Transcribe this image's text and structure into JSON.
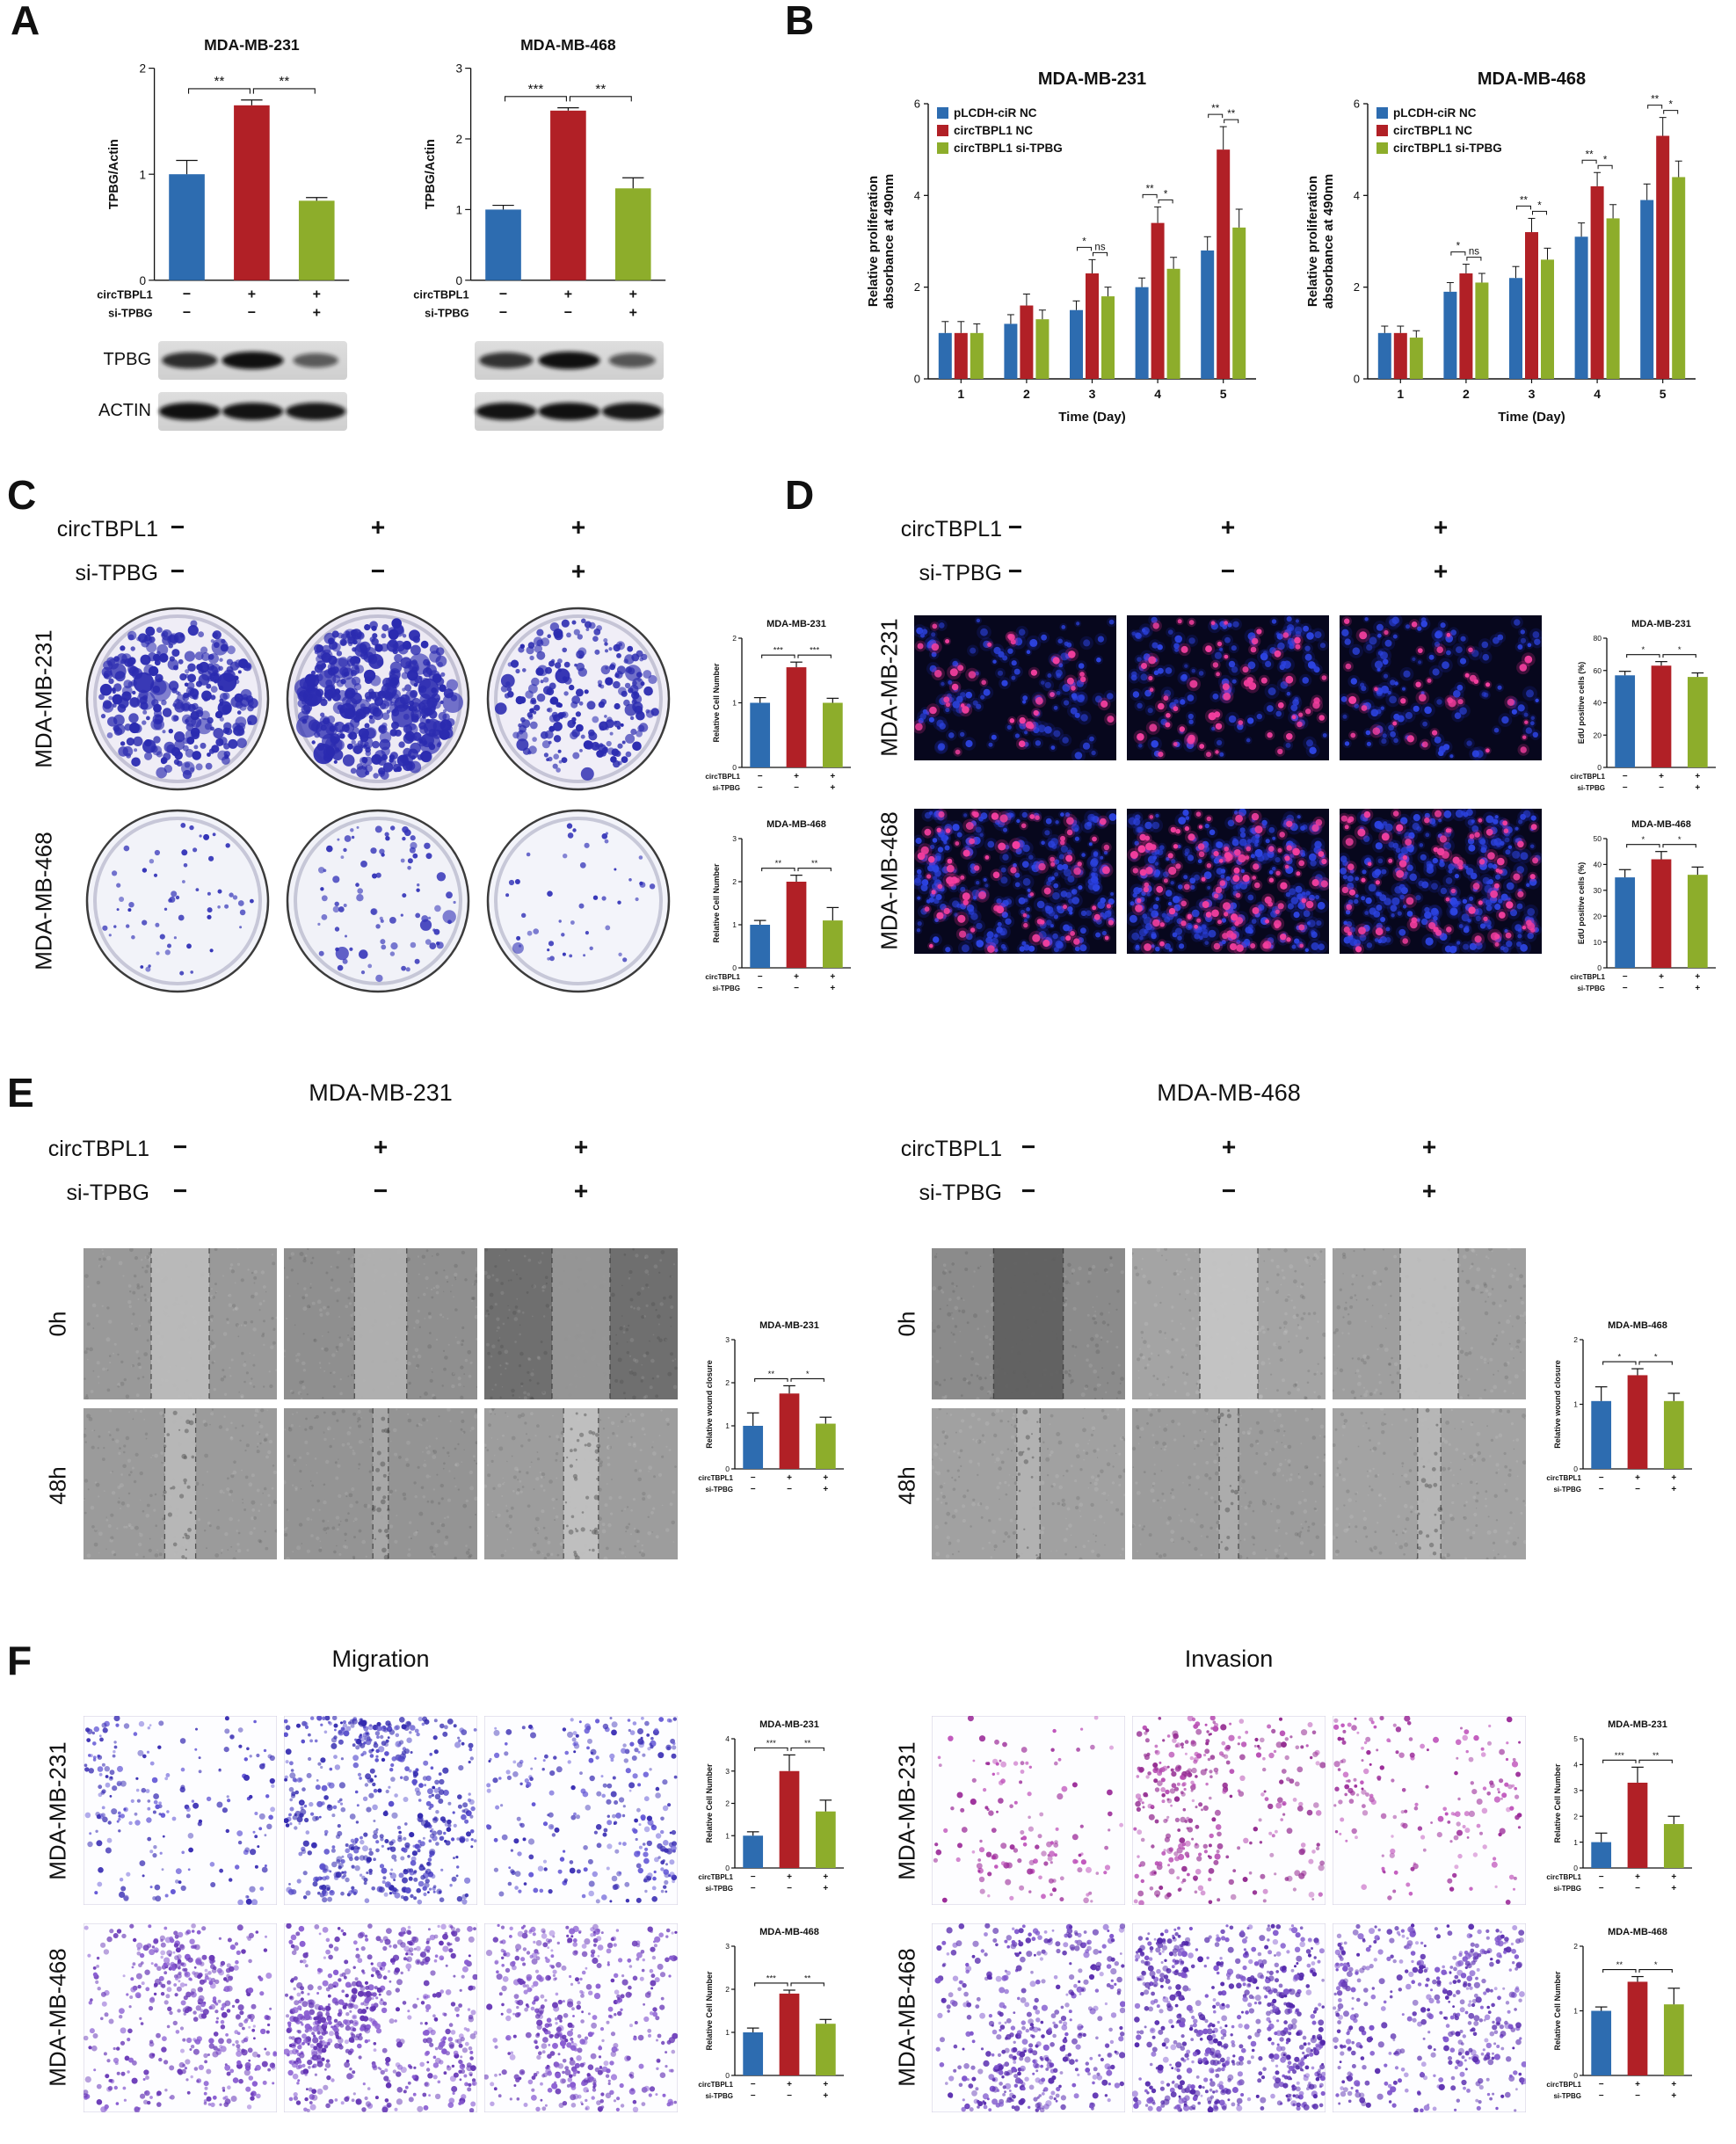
{
  "colors": {
    "blue": "#2d6cb0",
    "red": "#b12026",
    "green": "#8dad2b"
  },
  "conditions": {
    "row1_label": "circTBPL1",
    "row2_label": "si-TPBG",
    "row1": [
      "−",
      "+",
      "+"
    ],
    "row2": [
      "−",
      "−",
      "+"
    ]
  },
  "panelA": {
    "label": "A",
    "blot_rows": [
      "TPBG",
      "ACTIN"
    ],
    "charts": [
      {
        "type": "bar",
        "title": "MDA-MB-231",
        "ylabel": "TPBG/Actin",
        "ylim": [
          0,
          2
        ],
        "yticks": [
          0,
          1,
          2
        ],
        "values": [
          1.0,
          1.65,
          0.75
        ],
        "errors": [
          0.13,
          0.05,
          0.03
        ],
        "sig": [
          {
            "a": 0,
            "b": 1,
            "label": "**"
          },
          {
            "a": 1,
            "b": 2,
            "label": "**"
          }
        ]
      },
      {
        "type": "bar",
        "title": "MDA-MB-468",
        "ylabel": "TPBG/Actin",
        "ylim": [
          0,
          3
        ],
        "yticks": [
          0,
          1,
          2,
          3
        ],
        "values": [
          1.0,
          2.4,
          1.3
        ],
        "errors": [
          0.06,
          0.04,
          0.15
        ],
        "sig": [
          {
            "a": 0,
            "b": 1,
            "label": "***"
          },
          {
            "a": 1,
            "b": 2,
            "label": "**"
          }
        ]
      }
    ],
    "blots": {
      "mda231": {
        "TPBG": [
          0.8,
          1.0,
          0.45
        ],
        "ACTIN": [
          1.0,
          0.98,
          0.95
        ]
      },
      "mda468": {
        "TPBG": [
          0.75,
          1.0,
          0.5
        ],
        "ACTIN": [
          0.98,
          1.0,
          0.96
        ]
      }
    }
  },
  "panelB": {
    "label": "B",
    "charts": [
      {
        "type": "grouped-bar",
        "title": "MDA-MB-231",
        "ylabel_lines": [
          "Relative proliferation",
          "absorbance at 490nm"
        ],
        "xlabel": "Time (Day)",
        "ylim": [
          0,
          6
        ],
        "yticks": [
          0,
          2,
          4,
          6
        ],
        "categories": [
          "1",
          "2",
          "3",
          "4",
          "5"
        ],
        "series": [
          {
            "name": "pLCDH-ciR NC",
            "values": [
              1.0,
              1.2,
              1.5,
              2.0,
              2.8
            ],
            "errors": [
              0.25,
              0.2,
              0.2,
              0.2,
              0.3
            ]
          },
          {
            "name": "circTBPL1 NC",
            "values": [
              1.0,
              1.6,
              2.3,
              3.4,
              5.0
            ],
            "errors": [
              0.25,
              0.25,
              0.3,
              0.35,
              0.5
            ]
          },
          {
            "name": "circTBPL1 si-TPBG",
            "values": [
              1.0,
              1.3,
              1.8,
              2.4,
              3.3
            ],
            "errors": [
              0.2,
              0.2,
              0.2,
              0.25,
              0.4
            ]
          }
        ],
        "sig": [
          {
            "day": 2,
            "labels": [
              "*",
              "ns"
            ]
          },
          {
            "day": 3,
            "labels": [
              "**",
              "*"
            ]
          },
          {
            "day": 4,
            "labels": [
              "**",
              "**"
            ]
          }
        ]
      },
      {
        "type": "grouped-bar",
        "title": "MDA-MB-468",
        "ylabel_lines": [
          "Relative proliferation",
          "absorbance at 490nm"
        ],
        "xlabel": "Time (Day)",
        "ylim": [
          0,
          6
        ],
        "yticks": [
          0,
          2,
          4,
          6
        ],
        "categories": [
          "1",
          "2",
          "3",
          "4",
          "5"
        ],
        "series": [
          {
            "name": "pLCDH-ciR NC",
            "values": [
              1.0,
              1.9,
              2.2,
              3.1,
              3.9
            ],
            "errors": [
              0.15,
              0.2,
              0.25,
              0.3,
              0.35
            ]
          },
          {
            "name": "circTBPL1 NC",
            "values": [
              1.0,
              2.3,
              3.2,
              4.2,
              5.3
            ],
            "errors": [
              0.15,
              0.2,
              0.3,
              0.3,
              0.4
            ]
          },
          {
            "name": "circTBPL1 si-TPBG",
            "values": [
              0.9,
              2.1,
              2.6,
              3.5,
              4.4
            ],
            "errors": [
              0.15,
              0.2,
              0.25,
              0.3,
              0.35
            ]
          }
        ],
        "sig": [
          {
            "day": 1,
            "labels": [
              "*",
              "ns"
            ]
          },
          {
            "day": 2,
            "labels": [
              "**",
              "*"
            ]
          },
          {
            "day": 3,
            "labels": [
              "**",
              "*"
            ]
          },
          {
            "day": 4,
            "labels": [
              "**",
              "*"
            ]
          }
        ]
      }
    ]
  },
  "panelC": {
    "label": "C",
    "row_labels": [
      "MDA-MB-231",
      "MDA-MB-468"
    ],
    "images": [
      {
        "type": "dish",
        "seed": 11,
        "count": 300,
        "rmin": 2,
        "rmax": 6.5,
        "big": 0.08,
        "bg": "#efedf6",
        "dot": "#2b2bb0"
      },
      {
        "type": "dish",
        "seed": 12,
        "count": 430,
        "rmin": 2,
        "rmax": 7.0,
        "big": 0.1,
        "bg": "#edeaf4",
        "dot": "#2b2bb0"
      },
      {
        "type": "dish",
        "seed": 13,
        "count": 240,
        "rmin": 1.8,
        "rmax": 5.5,
        "big": 0.06,
        "bg": "#f0eef7",
        "dot": "#2b2bb0"
      },
      {
        "type": "dish",
        "seed": 14,
        "count": 60,
        "rmin": 1.5,
        "rmax": 3.6,
        "big": 0.05,
        "bg": "#f2f3f9",
        "dot": "#3434b8"
      },
      {
        "type": "dish",
        "seed": 15,
        "count": 90,
        "rmin": 1.5,
        "rmax": 4.2,
        "big": 0.05,
        "bg": "#f1f2f8",
        "dot": "#3434b8"
      },
      {
        "type": "dish",
        "seed": 16,
        "count": 46,
        "rmin": 1.4,
        "rmax": 3.4,
        "big": 0.04,
        "bg": "#f3f4fa",
        "dot": "#3434b8"
      }
    ],
    "charts": [
      {
        "type": "bar",
        "title": "MDA-MB-231",
        "ylabel": "Relative Cell Number",
        "ylim": [
          0,
          2
        ],
        "yticks": [
          0,
          1,
          2
        ],
        "values": [
          1.0,
          1.55,
          1.0
        ],
        "errors": [
          0.08,
          0.08,
          0.07
        ],
        "sig": [
          {
            "a": 0,
            "b": 1,
            "label": "***"
          },
          {
            "a": 1,
            "b": 2,
            "label": "***"
          }
        ]
      },
      {
        "type": "bar",
        "title": "MDA-MB-468",
        "ylabel": "Relative Cell Number",
        "ylim": [
          0,
          3
        ],
        "yticks": [
          0,
          1,
          2,
          3
        ],
        "values": [
          1.0,
          2.0,
          1.1
        ],
        "errors": [
          0.1,
          0.15,
          0.3
        ],
        "sig": [
          {
            "a": 0,
            "b": 1,
            "label": "**"
          },
          {
            "a": 1,
            "b": 2,
            "label": "**"
          }
        ]
      }
    ]
  },
  "panelD": {
    "label": "D",
    "row_labels": [
      "MDA-MB-231",
      "MDA-MB-468"
    ],
    "images": [
      {
        "type": "fluor",
        "seed": 21,
        "blue": 120,
        "pink": 38
      },
      {
        "type": "fluor",
        "seed": 22,
        "blue": 125,
        "pink": 62
      },
      {
        "type": "fluor",
        "seed": 23,
        "blue": 115,
        "pink": 36
      },
      {
        "type": "fluor",
        "seed": 24,
        "blue": 260,
        "pink": 78
      },
      {
        "type": "fluor",
        "seed": 25,
        "blue": 265,
        "pink": 118
      },
      {
        "type": "fluor",
        "seed": 26,
        "blue": 250,
        "pink": 82
      }
    ],
    "charts": [
      {
        "type": "bar",
        "title": "MDA-MB-231",
        "ylabel": "EdU positive cells (%)",
        "ylim": [
          0,
          80
        ],
        "yticks": [
          0,
          20,
          40,
          60,
          80
        ],
        "values": [
          57,
          63,
          56
        ],
        "errors": [
          2.5,
          2.5,
          2.5
        ],
        "sig": [
          {
            "a": 0,
            "b": 1,
            "label": "*"
          },
          {
            "a": 1,
            "b": 2,
            "label": "*"
          }
        ]
      },
      {
        "type": "bar",
        "title": "MDA-MB-468",
        "ylabel": "EdU positive cells (%)",
        "ylim": [
          0,
          50
        ],
        "yticks": [
          0,
          10,
          20,
          30,
          40,
          50
        ],
        "values": [
          35,
          42,
          36
        ],
        "errors": [
          3,
          3,
          3
        ],
        "sig": [
          {
            "a": 0,
            "b": 1,
            "label": "*"
          },
          {
            "a": 1,
            "b": 2,
            "label": "*"
          }
        ]
      }
    ]
  },
  "panelE": {
    "label": "E",
    "row_labels": [
      "0h",
      "48h"
    ],
    "blocks": [
      {
        "title": "MDA-MB-231",
        "images": [
          {
            "type": "wound",
            "seed": 31,
            "bg": "#999999",
            "gap": 0.3,
            "gapFill": "#bcbcbc"
          },
          {
            "type": "wound",
            "seed": 32,
            "bg": "#8f8f8f",
            "gap": 0.27,
            "gapFill": "#b2b2b2"
          },
          {
            "type": "wound",
            "seed": 33,
            "bg": "#6f6f6f",
            "gap": 0.3,
            "gapFill": "#989898"
          },
          {
            "type": "wound",
            "seed": 34,
            "bg": "#9b9b9b",
            "gap": 0.16,
            "gapFill": "#bababa",
            "cells": 28
          },
          {
            "type": "wound",
            "seed": 35,
            "bg": "#949494",
            "gap": 0.08,
            "gapFill": "#a8a8a8",
            "cells": 22
          },
          {
            "type": "wound",
            "seed": 36,
            "bg": "#9d9d9d",
            "gap": 0.18,
            "gapFill": "#c2c2c2",
            "cells": 40
          }
        ],
        "chart": {
          "type": "bar",
          "title": "MDA-MB-231",
          "ylabel": "Relative wound closure",
          "ylim": [
            0,
            3
          ],
          "yticks": [
            0,
            1,
            2,
            3
          ],
          "values": [
            1.0,
            1.75,
            1.05
          ],
          "errors": [
            0.3,
            0.18,
            0.15
          ],
          "sig": [
            {
              "a": 0,
              "b": 1,
              "label": "**"
            },
            {
              "a": 1,
              "b": 2,
              "label": "*"
            }
          ]
        }
      },
      {
        "title": "MDA-MB-468",
        "images": [
          {
            "type": "wound",
            "seed": 41,
            "bg": "#8b8b8b",
            "gap": 0.36,
            "gapFill": "#5e5e5e"
          },
          {
            "type": "wound",
            "seed": 42,
            "bg": "#a4a4a4",
            "gap": 0.3,
            "gapFill": "#c6c6c6"
          },
          {
            "type": "wound",
            "seed": 43,
            "bg": "#9f9f9f",
            "gap": 0.3,
            "gapFill": "#bfbfbf"
          },
          {
            "type": "wound",
            "seed": 44,
            "bg": "#a1a1a1",
            "gap": 0.12,
            "gapFill": "#b3b3b3",
            "cells": 18
          },
          {
            "type": "wound",
            "seed": 45,
            "bg": "#9c9c9c",
            "gap": 0.1,
            "gapFill": "#aeaeae",
            "cells": 16
          },
          {
            "type": "wound",
            "seed": 46,
            "bg": "#a3a3a3",
            "gap": 0.12,
            "gapFill": "#b7b7b7",
            "cells": 18
          }
        ],
        "chart": {
          "type": "bar",
          "title": "MDA-MB-468",
          "ylabel": "Relative wound closure",
          "ylim": [
            0,
            2
          ],
          "yticks": [
            0,
            1,
            2
          ],
          "values": [
            1.05,
            1.45,
            1.05
          ],
          "errors": [
            0.22,
            0.1,
            0.12
          ],
          "sig": [
            {
              "a": 0,
              "b": 1,
              "label": "*"
            },
            {
              "a": 1,
              "b": 2,
              "label": "*"
            }
          ]
        }
      }
    ]
  },
  "panelF": {
    "label": "F",
    "row_labels": [
      "MDA-MB-231",
      "MDA-MB-468"
    ],
    "blocks": [
      {
        "title": "Migration",
        "images": [
          {
            "type": "transwell",
            "seed": 51,
            "count": 260,
            "color": "#3b2fb4",
            "color2": "#6458d6"
          },
          {
            "type": "transwell",
            "seed": 52,
            "count": 680,
            "color": "#342bb0",
            "color2": "#5a50cc"
          },
          {
            "type": "transwell",
            "seed": 53,
            "count": 360,
            "color": "#3b2fb4",
            "color2": "#6458d6"
          },
          {
            "type": "transwell",
            "seed": 54,
            "count": 520,
            "color": "#6a3ab8",
            "color2": "#8a5ed2"
          },
          {
            "type": "transwell",
            "seed": 55,
            "count": 750,
            "color": "#6334b4",
            "color2": "#8a5ed2"
          },
          {
            "type": "transwell",
            "seed": 56,
            "count": 560,
            "color": "#6a3ab8",
            "color2": "#8a5ed2"
          }
        ],
        "charts": [
          {
            "type": "bar",
            "title": "MDA-MB-231",
            "ylabel": "Relative Cell Number",
            "ylim": [
              0,
              4
            ],
            "yticks": [
              0,
              1,
              2,
              3,
              4
            ],
            "values": [
              1.0,
              3.0,
              1.75
            ],
            "errors": [
              0.12,
              0.5,
              0.35
            ],
            "sig": [
              {
                "a": 0,
                "b": 1,
                "label": "***"
              },
              {
                "a": 1,
                "b": 2,
                "label": "**"
              }
            ]
          },
          {
            "type": "bar",
            "title": "MDA-MB-468",
            "ylabel": "Relative Cell Number",
            "ylim": [
              0,
              3
            ],
            "yticks": [
              0,
              1,
              2,
              3
            ],
            "values": [
              1.0,
              1.9,
              1.2
            ],
            "errors": [
              0.1,
              0.08,
              0.1
            ],
            "sig": [
              {
                "a": 0,
                "b": 1,
                "label": "***"
              },
              {
                "a": 1,
                "b": 2,
                "label": "**"
              }
            ]
          }
        ]
      },
      {
        "title": "Invasion",
        "images": [
          {
            "type": "transwell",
            "seed": 61,
            "count": 150,
            "color": "#9c2d9a",
            "color2": "#c055bc"
          },
          {
            "type": "transwell",
            "seed": 62,
            "count": 380,
            "color": "#932a90",
            "color2": "#b84fb4"
          },
          {
            "type": "transwell",
            "seed": 63,
            "count": 210,
            "color": "#9c2d9a",
            "color2": "#c055bc"
          },
          {
            "type": "transwell",
            "seed": 64,
            "count": 560,
            "color": "#5b2fb0",
            "color2": "#7e55cc"
          },
          {
            "type": "transwell",
            "seed": 65,
            "count": 800,
            "color": "#5429ac",
            "color2": "#7e55cc"
          },
          {
            "type": "transwell",
            "seed": 66,
            "count": 620,
            "color": "#5b2fb0",
            "color2": "#7e55cc"
          }
        ],
        "charts": [
          {
            "type": "bar",
            "title": "MDA-MB-231",
            "ylabel": "Relative Cell Number",
            "ylim": [
              0,
              5
            ],
            "yticks": [
              0,
              1,
              2,
              3,
              4,
              5
            ],
            "values": [
              1.0,
              3.3,
              1.7
            ],
            "errors": [
              0.35,
              0.6,
              0.3
            ],
            "sig": [
              {
                "a": 0,
                "b": 1,
                "label": "***"
              },
              {
                "a": 1,
                "b": 2,
                "label": "**"
              }
            ]
          },
          {
            "type": "bar",
            "title": "MDA-MB-468",
            "ylabel": "Relative Cell Number",
            "ylim": [
              0,
              2
            ],
            "yticks": [
              0,
              1,
              2
            ],
            "values": [
              1.0,
              1.45,
              1.1
            ],
            "errors": [
              0.06,
              0.08,
              0.25
            ],
            "sig": [
              {
                "a": 0,
                "b": 1,
                "label": "**"
              },
              {
                "a": 1,
                "b": 2,
                "label": "*"
              }
            ]
          }
        ]
      }
    ]
  }
}
